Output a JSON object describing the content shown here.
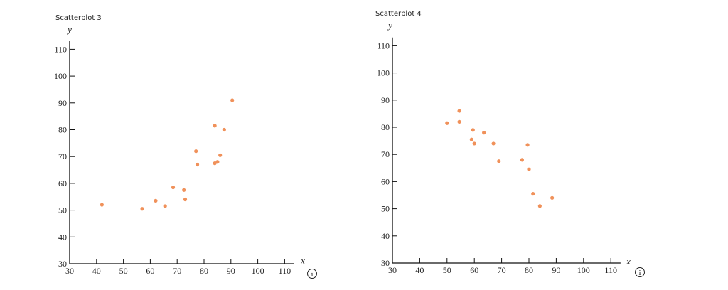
{
  "chart_data": [
    {
      "type": "scatter",
      "title": "Scatterplot 3",
      "xlabel": "x",
      "ylabel": "y",
      "xlim": [
        30,
        112
      ],
      "ylim": [
        30,
        112
      ],
      "xticks": [
        30,
        40,
        50,
        60,
        70,
        80,
        90,
        100,
        110
      ],
      "yticks": [
        30,
        40,
        50,
        60,
        70,
        80,
        90,
        100,
        110
      ],
      "color": "#F0915A",
      "info_icon": "i",
      "points": [
        {
          "x": 42,
          "y": 52
        },
        {
          "x": 57,
          "y": 50.5
        },
        {
          "x": 62,
          "y": 53.5
        },
        {
          "x": 65.5,
          "y": 51.5
        },
        {
          "x": 68.5,
          "y": 58.5
        },
        {
          "x": 72.5,
          "y": 57.5
        },
        {
          "x": 73,
          "y": 54
        },
        {
          "x": 77,
          "y": 72
        },
        {
          "x": 77.5,
          "y": 67
        },
        {
          "x": 84,
          "y": 67.5
        },
        {
          "x": 85,
          "y": 68
        },
        {
          "x": 86,
          "y": 70.5
        },
        {
          "x": 84,
          "y": 81.5
        },
        {
          "x": 87.5,
          "y": 80
        },
        {
          "x": 90.5,
          "y": 91
        }
      ]
    },
    {
      "type": "scatter",
      "title": "Scatterplot 4",
      "xlabel": "x",
      "ylabel": "y",
      "xlim": [
        30,
        112
      ],
      "ylim": [
        30,
        112
      ],
      "xticks": [
        30,
        40,
        50,
        60,
        70,
        80,
        90,
        100,
        110
      ],
      "yticks": [
        30,
        40,
        50,
        60,
        70,
        80,
        90,
        100,
        110
      ],
      "color": "#F0915A",
      "info_icon": "i",
      "points": [
        {
          "x": 50,
          "y": 81.5
        },
        {
          "x": 54.5,
          "y": 86
        },
        {
          "x": 54.5,
          "y": 82
        },
        {
          "x": 59.5,
          "y": 79
        },
        {
          "x": 59,
          "y": 75.5
        },
        {
          "x": 60,
          "y": 74
        },
        {
          "x": 63.5,
          "y": 78
        },
        {
          "x": 67,
          "y": 74
        },
        {
          "x": 69,
          "y": 67.5
        },
        {
          "x": 77.5,
          "y": 68
        },
        {
          "x": 79.5,
          "y": 73.5
        },
        {
          "x": 80,
          "y": 64.5
        },
        {
          "x": 81.5,
          "y": 55.5
        },
        {
          "x": 84,
          "y": 51
        },
        {
          "x": 88.5,
          "y": 54
        }
      ]
    }
  ]
}
